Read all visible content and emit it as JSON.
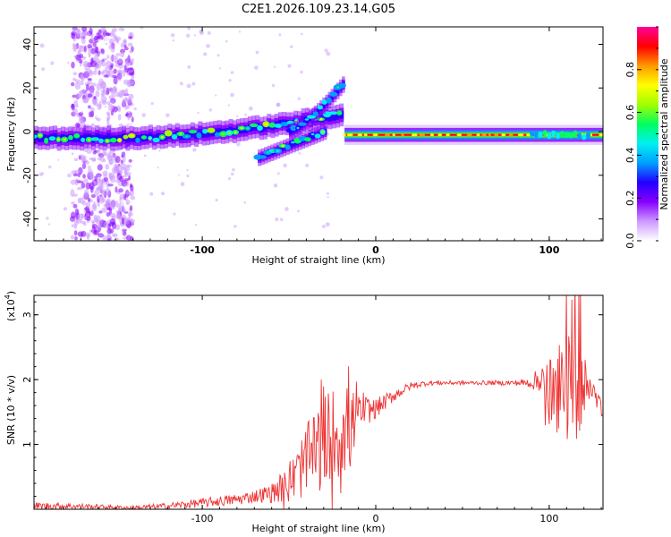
{
  "title": "C2E1.2026.109.23.14.G05",
  "chart_data": [
    {
      "type": "heatmap",
      "name": "spectrogram",
      "xlabel": "Height of straight line (km)",
      "ylabel": "Frequency (Hz)",
      "xlim": [
        -197,
        131
      ],
      "ylim": [
        -50,
        48
      ],
      "xticks": [
        -100,
        0,
        100
      ],
      "yticks": [
        -40,
        -20,
        0,
        20,
        40
      ],
      "colorbar": {
        "label": "Normalized spectral amplitude",
        "ticks": [
          "0.0",
          "0.2",
          "0.4",
          "0.6",
          "0.8"
        ],
        "tick_values": [
          0.0,
          0.2,
          0.4,
          0.6,
          0.8
        ],
        "range": [
          0,
          1
        ],
        "colors": [
          "#ffffff",
          "#cc99ff",
          "#8800ff",
          "#2200ff",
          "#00a0ff",
          "#00f0f0",
          "#00ff60",
          "#a0ff00",
          "#ffff00",
          "#ff9900",
          "#ff0000",
          "#ff0099"
        ]
      },
      "features": [
        {
          "name": "carrier_band",
          "x_range": [
            -197,
            -20
          ],
          "freq_start": -3,
          "freq_end": 8
        },
        {
          "name": "rising_branch",
          "x_range": [
            -50,
            -18
          ],
          "freq_start": 0,
          "freq_end": 23
        },
        {
          "name": "lower_branch",
          "x_range": [
            -68,
            -30
          ],
          "freq_start": -12,
          "freq_end": 0
        },
        {
          "name": "stable_carrier",
          "x_range": [
            -18,
            131
          ],
          "freq": -1.5
        },
        {
          "name": "broadband_noise",
          "x_range": [
            -175,
            -140
          ],
          "freq_range": [
            -50,
            48
          ]
        }
      ]
    },
    {
      "type": "line",
      "name": "snr",
      "xlabel": "Height of straight line (km)",
      "ylabel": "SNR (10 * v/v)",
      "scale_label": "(x10",
      "scale_exp": "4",
      "xlim": [
        -197,
        131
      ],
      "ylim": [
        0,
        3.3
      ],
      "xticks": [
        -100,
        0,
        100
      ],
      "yticks": [
        1,
        2,
        3
      ],
      "color": "#ee3333",
      "envelope": {
        "x": [
          -197,
          -180,
          -160,
          -140,
          -120,
          -100,
          -80,
          -70,
          -60,
          -50,
          -40,
          -30,
          -20,
          -15,
          -10,
          0,
          10,
          20,
          30,
          50,
          70,
          90,
          95,
          100,
          105,
          110,
          115,
          120,
          125,
          131
        ],
        "y": [
          0.05,
          0.05,
          0.04,
          0.02,
          0.05,
          0.1,
          0.15,
          0.2,
          0.25,
          0.4,
          0.8,
          1.1,
          1.3,
          1.35,
          1.5,
          1.55,
          1.75,
          1.9,
          1.95,
          1.95,
          1.95,
          1.95,
          2.0,
          1.8,
          1.7,
          1.9,
          1.85,
          1.9,
          1.85,
          1.5
        ]
      },
      "noise": {
        "x": [
          -197,
          -180,
          -150,
          -120,
          -90,
          -70,
          -60,
          -50,
          -40,
          -30,
          -20,
          -15,
          -10,
          0,
          10,
          20,
          30,
          50,
          80,
          90,
          95,
          100,
          105,
          110,
          115,
          120,
          125,
          131
        ],
        "amp": [
          0.06,
          0.05,
          0.03,
          0.05,
          0.08,
          0.1,
          0.15,
          0.3,
          0.55,
          0.75,
          0.75,
          0.65,
          0.3,
          0.15,
          0.1,
          0.06,
          0.04,
          0.03,
          0.04,
          0.08,
          0.3,
          0.6,
          0.7,
          0.85,
          0.9,
          0.4,
          0.15,
          0.12
        ]
      }
    }
  ]
}
